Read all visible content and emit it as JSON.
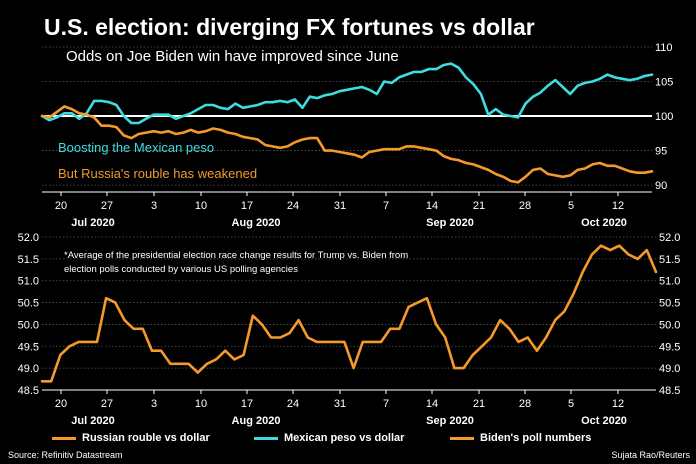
{
  "title": "U.S. election: diverging FX fortunes vs dollar",
  "subtitle": "Odds on Joe Biden win have improved since June",
  "annotation_peso": "Boosting the Mexican peso",
  "annotation_rouble": "But Russia's rouble has weakened",
  "footnote": "*Average of the presidential election race change results for Trump vs. Biden from election polls conducted by various US polling agencies",
  "source": "Source: Refinitiv Datastream",
  "credit": "Sujata Rao/Reuters",
  "colors": {
    "rouble": "#F39A2B",
    "peso": "#3EDCE0",
    "poll": "#F39A2B",
    "grid": "#5a5a5a",
    "text": "#ffffff"
  },
  "legend": [
    {
      "label": "Russian rouble vs dollar",
      "color": "#F39A2B"
    },
    {
      "label": "Mexican peso vs dollar",
      "color": "#3EDCE0"
    },
    {
      "label": "Biden's poll numbers",
      "color": "#F39A2B"
    }
  ],
  "chart_data": [
    {
      "type": "line",
      "title": "Odds on Joe Biden win have improved since June",
      "x_day_ticks": [
        "20",
        "27",
        "3",
        "10",
        "17",
        "24",
        "31",
        "7",
        "14",
        "21",
        "28",
        "5",
        "12"
      ],
      "x_month_ticks": [
        "Jul 2020",
        "Aug 2020",
        "Sep 2020",
        "Oct 2020"
      ],
      "y_ticks": [
        90,
        95,
        100,
        105,
        110
      ],
      "ylim": [
        89,
        110
      ],
      "grid": "horizontal",
      "series": [
        {
          "name": "Mexican peso vs dollar",
          "values": [
            100,
            99.4,
            99.8,
            100.4,
            100.4,
            99.6,
            100.4,
            102.2,
            102.2,
            102,
            101.6,
            100,
            99,
            99,
            99.6,
            100.2,
            100.2,
            100.2,
            99.6,
            100,
            100.4,
            101,
            101.6,
            101.6,
            101.2,
            101,
            101.8,
            101.2,
            101.4,
            101.6,
            102,
            102,
            102.2,
            102,
            102.4,
            101.2,
            102.8,
            102.6,
            103,
            103.2,
            103.6,
            103.8,
            104,
            104.2,
            103.8,
            103.2,
            105,
            104.8,
            105.6,
            106,
            106.4,
            106.4,
            106.8,
            106.8,
            107.4,
            107.6,
            107,
            105.6,
            104.6,
            103.2,
            100.2,
            101,
            100.2,
            100,
            99.8,
            101.8,
            102.8,
            103.4,
            104.4,
            105.2,
            104.2,
            103.2,
            104.4,
            104.8,
            105,
            105.4,
            106,
            105.6,
            105.4,
            105.2,
            105.4,
            105.8,
            106
          ]
        },
        {
          "name": "Russian rouble vs dollar",
          "values": [
            100,
            99.8,
            100.6,
            101.4,
            101,
            100.4,
            100.2,
            99.8,
            98.6,
            98.6,
            98.4,
            97.2,
            96.8,
            97.4,
            97.6,
            97.8,
            97.6,
            97.8,
            97.4,
            97.6,
            98,
            97.6,
            97.8,
            98.2,
            98,
            97.6,
            97.4,
            97,
            96.8,
            96.6,
            95.8,
            95.6,
            95.4,
            95.6,
            96.2,
            96.6,
            96.8,
            96.8,
            95,
            95,
            94.8,
            94.6,
            94.4,
            94,
            94.8,
            95,
            95.2,
            95.2,
            95.2,
            95.6,
            95.6,
            95.4,
            95.2,
            95,
            94.2,
            93.8,
            93.6,
            93.2,
            93,
            92.6,
            92.2,
            91.6,
            91.2,
            90.6,
            90.4,
            91.2,
            92.2,
            92.4,
            91.6,
            91.4,
            91.2,
            91.4,
            92.2,
            92.4,
            93,
            93.2,
            92.8,
            92.8,
            92.4,
            92,
            91.8,
            91.8,
            92
          ]
        }
      ]
    },
    {
      "type": "line",
      "x_day_ticks": [
        "20",
        "27",
        "3",
        "10",
        "17",
        "24",
        "31",
        "7",
        "14",
        "21",
        "28",
        "5",
        "12"
      ],
      "x_month_ticks": [
        "Jul 2020",
        "Aug 2020",
        "Sep 2020",
        "Oct 2020"
      ],
      "y_ticks": [
        48.5,
        49.0,
        49.5,
        50.0,
        50.5,
        51.0,
        51.5,
        52.0
      ],
      "ylim": [
        48.5,
        52.0
      ],
      "grid": "horizontal",
      "series": [
        {
          "name": "Biden's poll numbers",
          "values": [
            48.7,
            48.7,
            49.3,
            49.5,
            49.6,
            49.6,
            49.6,
            50.6,
            50.5,
            50.1,
            49.9,
            49.9,
            49.4,
            49.4,
            49.1,
            49.1,
            49.1,
            48.9,
            49.1,
            49.2,
            49.4,
            49.2,
            49.3,
            50.2,
            50,
            49.7,
            49.7,
            49.8,
            50.1,
            49.7,
            49.6,
            49.6,
            49.6,
            49.6,
            49,
            49.6,
            49.6,
            49.6,
            49.9,
            49.9,
            50.4,
            50.5,
            50.6,
            50,
            49.7,
            49,
            49,
            49.3,
            49.5,
            49.7,
            50.1,
            49.9,
            49.6,
            49.7,
            49.4,
            49.7,
            50.1,
            50.3,
            50.7,
            51.2,
            51.6,
            51.8,
            51.7,
            51.8,
            51.6,
            51.5,
            51.7,
            51.2
          ]
        }
      ]
    }
  ]
}
